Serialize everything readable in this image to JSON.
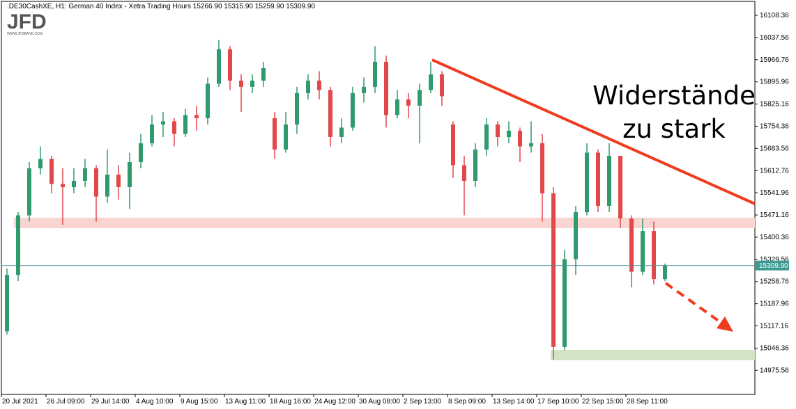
{
  "header": ".DE30CashXE, H1:  German 40 Index  - Xetra Trading Hours  15266.90 15315.90 15259.90 15309.90",
  "logo": {
    "brand": "JFD",
    "site": "WWW.JFDBANK.COM"
  },
  "annotation": [
    "Widerstände",
    "zu stark"
  ],
  "chart_data": {
    "type": "ohlc",
    "up_color": "#2e9a6e",
    "down_color": "#e2474a",
    "categories": [
      "20 Jul 2021",
      null,
      null,
      null,
      "26 Jul 09:00",
      null,
      null,
      null,
      "29 Jul 14:00",
      null,
      null,
      null,
      "4 Aug 10:00",
      null,
      null,
      null,
      "9 Aug 15:00",
      null,
      null,
      null,
      "13 Aug 11:00",
      null,
      null,
      null,
      "18 Aug 16:00",
      null,
      null,
      null,
      "24 Aug 12:00",
      null,
      null,
      null,
      "30 Aug 08:00",
      null,
      null,
      null,
      "2 Sep 13:00",
      null,
      null,
      null,
      "8 Sep 09:00",
      null,
      null,
      null,
      "13 Sep 14:00",
      null,
      null,
      null,
      "17 Sep 10:00",
      null,
      null,
      null,
      "22 Sep 15:00",
      null,
      null,
      null,
      "28 Sep 11:00",
      null,
      null,
      null
    ],
    "open": [
      15100,
      15280,
      15470,
      15620,
      15650,
      15570,
      15560,
      15580,
      15620,
      15530,
      15600,
      15560,
      15640,
      15700,
      15760,
      15770,
      15730,
      15790,
      15780,
      15890,
      16000,
      15900,
      15880,
      15900,
      15780,
      15680,
      15760,
      15860,
      15900,
      15870,
      15720,
      15750,
      15860,
      15880,
      15960,
      15790,
      15840,
      15820,
      15870,
      15920,
      15760,
      15630,
      15580,
      15680,
      15760,
      15720,
      15740,
      15690,
      15700,
      15540,
      15050,
      15330,
      15480,
      15670,
      15500,
      15660,
      15460,
      15290,
      15420,
      15266.9
    ],
    "high": [
      15300,
      15480,
      15640,
      15690,
      15660,
      15620,
      15620,
      15650,
      15630,
      15680,
      15630,
      15670,
      15730,
      15790,
      15800,
      15780,
      15810,
      15820,
      15910,
      16030,
      16010,
      15920,
      15920,
      15960,
      15800,
      15800,
      15880,
      15920,
      15930,
      15880,
      15780,
      15880,
      15910,
      16010,
      15980,
      15870,
      15860,
      15890,
      15960,
      15930,
      15770,
      15660,
      15700,
      15780,
      15770,
      15770,
      15750,
      15770,
      15730,
      15560,
      15360,
      15500,
      15700,
      15680,
      15700,
      15660,
      15470,
      15460,
      15450,
      15315.9
    ],
    "low": [
      15090,
      15260,
      15450,
      15600,
      15540,
      15440,
      15540,
      15560,
      15450,
      15510,
      15520,
      15490,
      15620,
      15690,
      15720,
      15690,
      15720,
      15740,
      15760,
      15880,
      15870,
      15800,
      15860,
      15880,
      15650,
      15670,
      15730,
      15840,
      15840,
      15690,
      15700,
      15740,
      15830,
      15860,
      15750,
      15780,
      15780,
      15700,
      15860,
      15820,
      15590,
      15470,
      15560,
      15660,
      15690,
      15700,
      15640,
      15670,
      15450,
      15010,
      15040,
      15280,
      15470,
      15480,
      15480,
      15430,
      15240,
      15280,
      15250,
      15259.9
    ],
    "close": [
      15280,
      15470,
      15620,
      15650,
      15570,
      15560,
      15580,
      15620,
      15530,
      15600,
      15560,
      15640,
      15700,
      15760,
      15770,
      15730,
      15790,
      15780,
      15890,
      16000,
      15900,
      15880,
      15900,
      15940,
      15680,
      15760,
      15860,
      15900,
      15870,
      15720,
      15750,
      15860,
      15880,
      15960,
      15790,
      15840,
      15820,
      15870,
      15920,
      15850,
      15630,
      15580,
      15680,
      15760,
      15720,
      15740,
      15690,
      15700,
      15540,
      15050,
      15330,
      15480,
      15670,
      15500,
      15660,
      15460,
      15290,
      15420,
      15266.9,
      15309.9
    ],
    "last_price": {
      "value": 15309.9,
      "label": "15309.90"
    },
    "ylim": [
      14898.6,
      16157.2
    ],
    "yticks": [
      16108.36,
      16037.56,
      15966.76,
      15895.96,
      15825.16,
      15754.36,
      15683.56,
      15612.76,
      15541.96,
      15471.16,
      15400.36,
      15329.56,
      15258.76,
      15187.96,
      15117.16,
      15046.36,
      14975.56
    ]
  }
}
